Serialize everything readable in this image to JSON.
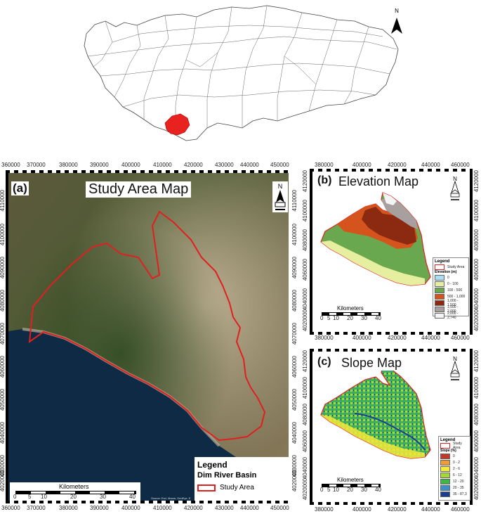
{
  "inset": {
    "north_label": "N"
  },
  "panel_a": {
    "label": "(a)",
    "title": "Study Area Map",
    "top_ticks": [
      "360000",
      "370000",
      "380000",
      "390000",
      "400000",
      "410000",
      "420000",
      "430000",
      "440000",
      "450000"
    ],
    "bottom_ticks": [
      "360000",
      "370000",
      "380000",
      "390000",
      "400000",
      "410000",
      "420000",
      "430000",
      "440000",
      "450000"
    ],
    "left_ticks": [
      "4110000",
      "4100000",
      "4090000",
      "4080000",
      "4070000",
      "4060000",
      "4050000",
      "4040000",
      "4030000",
      "4020000"
    ],
    "right_ticks": [
      "4110000",
      "4100000",
      "4090000",
      "4080000",
      "4070000",
      "4060000",
      "4050000",
      "4040000",
      "4030000",
      "4020000"
    ],
    "legend_title": "Legend",
    "legend_subtitle": "Dim River Basin",
    "legend_item": "Study Area",
    "scale_title": "Kilometers",
    "scale_ticks": [
      "0",
      "5",
      "10",
      "20",
      "30",
      "40"
    ],
    "credit": "Source: Esri, Maxar, GeoEye, E",
    "north_label": "N",
    "colors": {
      "boundary": "#e02020",
      "sea": "#0f2a45"
    }
  },
  "panel_b": {
    "label": "(b)",
    "title": "Elevation Map",
    "top_ticks": [
      "380000",
      "400000",
      "420000",
      "440000",
      "460000"
    ],
    "bottom_ticks": [
      "380000",
      "400000",
      "420000",
      "440000",
      "460000"
    ],
    "left_ticks": [
      "4120000",
      "4100000",
      "4080000",
      "4060000",
      "4040000",
      "4020000"
    ],
    "right_ticks": [
      "4120000",
      "4100000",
      "4080000",
      "4060000",
      "4040000",
      "4020000"
    ],
    "legend_title": "Legend",
    "legend_item": "Study Area",
    "legend_sub": "Elevation (m)",
    "classes": [
      {
        "label": "0",
        "color": "#a9dff2"
      },
      {
        "label": "0 - 100",
        "color": "#e6efa0"
      },
      {
        "label": "100 - 500",
        "color": "#6aa84f"
      },
      {
        "label": "500 - 1,000",
        "color": "#d5541d"
      },
      {
        "label": "1,000 - 1,500",
        "color": "#8b2a10"
      },
      {
        "label": "1,500 - 2,000",
        "color": "#a89f9f"
      },
      {
        "label": "2,000 - 2,740",
        "color": "#f4f4f4"
      }
    ],
    "scale_title": "Kilometers",
    "scale_ticks": [
      "0",
      "5",
      "10",
      "20",
      "30",
      "40"
    ],
    "north_label": "N"
  },
  "panel_c": {
    "label": "(c)",
    "title": "Slope Map",
    "top_ticks": [
      "380000",
      "400000",
      "420000",
      "440000",
      "460000"
    ],
    "bottom_ticks": [
      "380000",
      "400000",
      "420000",
      "440000",
      "460000"
    ],
    "left_ticks": [
      "4120000",
      "4100000",
      "4080000",
      "4060000",
      "4040000",
      "4020000"
    ],
    "right_ticks": [
      "4120000",
      "4100000",
      "4080000",
      "4060000",
      "4040000",
      "4020000"
    ],
    "legend_title": "Legend",
    "legend_item": "Study Area",
    "legend_sub": "Slope (%)",
    "classes": [
      {
        "label": "0",
        "color": "#c0392b"
      },
      {
        "label": "0 - 2",
        "color": "#f29b35"
      },
      {
        "label": "2 - 6",
        "color": "#f5e93a"
      },
      {
        "label": "6 - 12",
        "color": "#a6d83a"
      },
      {
        "label": "12 - 20",
        "color": "#3fb54a"
      },
      {
        "label": "20 - 35",
        "color": "#3a8fc6"
      },
      {
        "label": "35 - 87,3",
        "color": "#1b3f8f"
      }
    ],
    "scale_title": "Kilometers",
    "scale_ticks": [
      "0",
      "5",
      "10",
      "20",
      "30",
      "40"
    ],
    "north_label": "N"
  }
}
